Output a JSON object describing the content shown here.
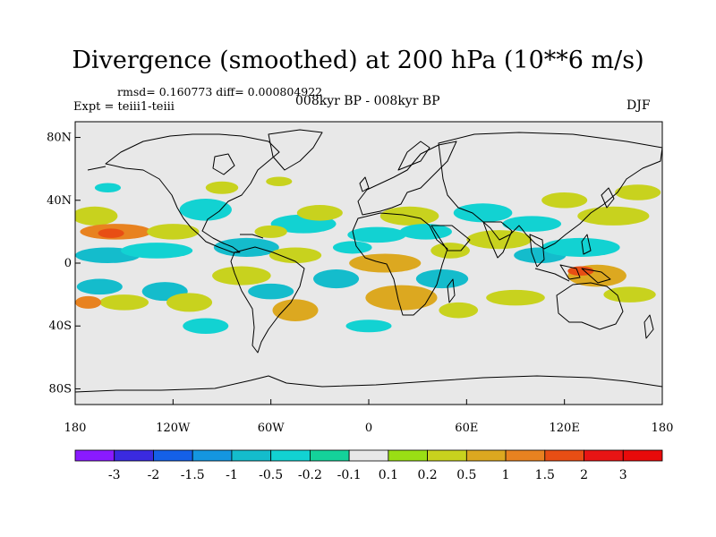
{
  "title": "Divergence (smoothed) at 200 hPa (10**6 m/s)",
  "stats": "rmsd= 0.160773 diff= 0.000804922",
  "experiment": "Expt = teiii1-teiii",
  "subtitle": "008kyr BP - 008kyr BP",
  "season": "DJF",
  "map": {
    "projection": "cylindrical-equidistant",
    "lon_range": [
      -180,
      180
    ],
    "lat_range": [
      -90,
      90
    ],
    "y_ticks": [
      {
        "lat": 80,
        "label": "80N"
      },
      {
        "lat": 40,
        "label": "40N"
      },
      {
        "lat": 0,
        "label": "0"
      },
      {
        "lat": -40,
        "label": "40S"
      },
      {
        "lat": -80,
        "label": "80S"
      }
    ],
    "x_ticks": [
      {
        "lon": -180,
        "label": "180"
      },
      {
        "lon": -120,
        "label": "120W"
      },
      {
        "lon": -60,
        "label": "60W"
      },
      {
        "lon": 0,
        "label": "0"
      },
      {
        "lon": 60,
        "label": "60E"
      },
      {
        "lon": 120,
        "label": "120E"
      },
      {
        "lon": 180,
        "label": "180"
      }
    ],
    "background_color": "#e8e8e8",
    "fields": [
      {
        "lon": -168,
        "lat": 30,
        "rx": 14,
        "ry": 6,
        "level": 2
      },
      {
        "lon": -155,
        "lat": 20,
        "rx": 22,
        "ry": 5,
        "level": 4
      },
      {
        "lon": -158,
        "lat": 19,
        "rx": 8,
        "ry": 3,
        "level": 5
      },
      {
        "lon": -160,
        "lat": 5,
        "rx": 20,
        "ry": 5,
        "level": -3
      },
      {
        "lon": -165,
        "lat": -15,
        "rx": 14,
        "ry": 5,
        "level": -3
      },
      {
        "lon": -150,
        "lat": -25,
        "rx": 15,
        "ry": 5,
        "level": 2
      },
      {
        "lon": -172,
        "lat": -25,
        "rx": 8,
        "ry": 4,
        "level": 4
      },
      {
        "lon": -125,
        "lat": -18,
        "rx": 14,
        "ry": 6,
        "level": -3
      },
      {
        "lon": -110,
        "lat": -25,
        "rx": 14,
        "ry": 6,
        "level": 2
      },
      {
        "lon": -130,
        "lat": 8,
        "rx": 22,
        "ry": 5,
        "level": -2
      },
      {
        "lon": -120,
        "lat": 20,
        "rx": 16,
        "ry": 5,
        "level": 2
      },
      {
        "lon": -100,
        "lat": 34,
        "rx": 16,
        "ry": 7,
        "level": -2
      },
      {
        "lon": -75,
        "lat": 10,
        "rx": 20,
        "ry": 6,
        "level": -3
      },
      {
        "lon": -78,
        "lat": -8,
        "rx": 18,
        "ry": 6,
        "level": 2
      },
      {
        "lon": -60,
        "lat": -18,
        "rx": 14,
        "ry": 5,
        "level": -3
      },
      {
        "lon": -45,
        "lat": -30,
        "rx": 14,
        "ry": 7,
        "level": 3
      },
      {
        "lon": -45,
        "lat": 5,
        "rx": 16,
        "ry": 5,
        "level": 2
      },
      {
        "lon": -40,
        "lat": 25,
        "rx": 20,
        "ry": 6,
        "level": -2
      },
      {
        "lon": -30,
        "lat": 32,
        "rx": 14,
        "ry": 5,
        "level": 2
      },
      {
        "lon": -60,
        "lat": 20,
        "rx": 10,
        "ry": 4,
        "level": 2
      },
      {
        "lon": -20,
        "lat": -10,
        "rx": 14,
        "ry": 6,
        "level": -3
      },
      {
        "lon": -10,
        "lat": 10,
        "rx": 12,
        "ry": 4,
        "level": -2
      },
      {
        "lon": 5,
        "lat": 18,
        "rx": 18,
        "ry": 5,
        "level": -2
      },
      {
        "lon": 10,
        "lat": 0,
        "rx": 22,
        "ry": 6,
        "level": 3
      },
      {
        "lon": 20,
        "lat": -22,
        "rx": 22,
        "ry": 8,
        "level": 3
      },
      {
        "lon": 45,
        "lat": -10,
        "rx": 16,
        "ry": 6,
        "level": -3
      },
      {
        "lon": 55,
        "lat": -30,
        "rx": 12,
        "ry": 5,
        "level": 2
      },
      {
        "lon": 25,
        "lat": 30,
        "rx": 18,
        "ry": 6,
        "level": 2
      },
      {
        "lon": 35,
        "lat": 20,
        "rx": 16,
        "ry": 5,
        "level": -2
      },
      {
        "lon": 50,
        "lat": 8,
        "rx": 12,
        "ry": 5,
        "level": 2
      },
      {
        "lon": 70,
        "lat": 32,
        "rx": 18,
        "ry": 6,
        "level": -2
      },
      {
        "lon": 80,
        "lat": 15,
        "rx": 20,
        "ry": 6,
        "level": 2
      },
      {
        "lon": 100,
        "lat": 25,
        "rx": 18,
        "ry": 5,
        "level": -2
      },
      {
        "lon": 105,
        "lat": 5,
        "rx": 16,
        "ry": 5,
        "level": -3
      },
      {
        "lon": 130,
        "lat": 10,
        "rx": 24,
        "ry": 6,
        "level": -2
      },
      {
        "lon": 140,
        "lat": -8,
        "rx": 18,
        "ry": 7,
        "level": 3
      },
      {
        "lon": 130,
        "lat": -5,
        "rx": 8,
        "ry": 3,
        "level": 5
      },
      {
        "lon": 160,
        "lat": -20,
        "rx": 16,
        "ry": 5,
        "level": 2
      },
      {
        "lon": 150,
        "lat": 30,
        "rx": 22,
        "ry": 6,
        "level": 2
      },
      {
        "lon": 165,
        "lat": 45,
        "rx": 14,
        "ry": 5,
        "level": 2
      },
      {
        "lon": 120,
        "lat": 40,
        "rx": 14,
        "ry": 5,
        "level": 2
      },
      {
        "lon": -90,
        "lat": 48,
        "rx": 10,
        "ry": 4,
        "level": 2
      },
      {
        "lon": -55,
        "lat": 52,
        "rx": 8,
        "ry": 3,
        "level": 2
      },
      {
        "lon": -160,
        "lat": 48,
        "rx": 8,
        "ry": 3,
        "level": -2
      },
      {
        "lon": 90,
        "lat": -22,
        "rx": 18,
        "ry": 5,
        "level": 2
      },
      {
        "lon": -100,
        "lat": -40,
        "rx": 14,
        "ry": 5,
        "level": -2
      },
      {
        "lon": 0,
        "lat": -40,
        "rx": 14,
        "ry": 4,
        "level": -2
      }
    ]
  },
  "colorbar": {
    "labels": [
      "-3",
      "-2",
      "-1.5",
      "-1",
      "-0.5",
      "-0.2",
      "-0.1",
      "0.1",
      "0.2",
      "0.5",
      "1",
      "1.5",
      "2",
      "3"
    ],
    "colors": [
      "#8a1aff",
      "#3a2ae0",
      "#1460e8",
      "#1496e0",
      "#14bccc",
      "#12d2d2",
      "#14d29a",
      "#e8e8e8",
      "#9ade14",
      "#c8d21e",
      "#dca820",
      "#e88220",
      "#e84e14",
      "#e81414",
      "#e80a0a"
    ]
  }
}
